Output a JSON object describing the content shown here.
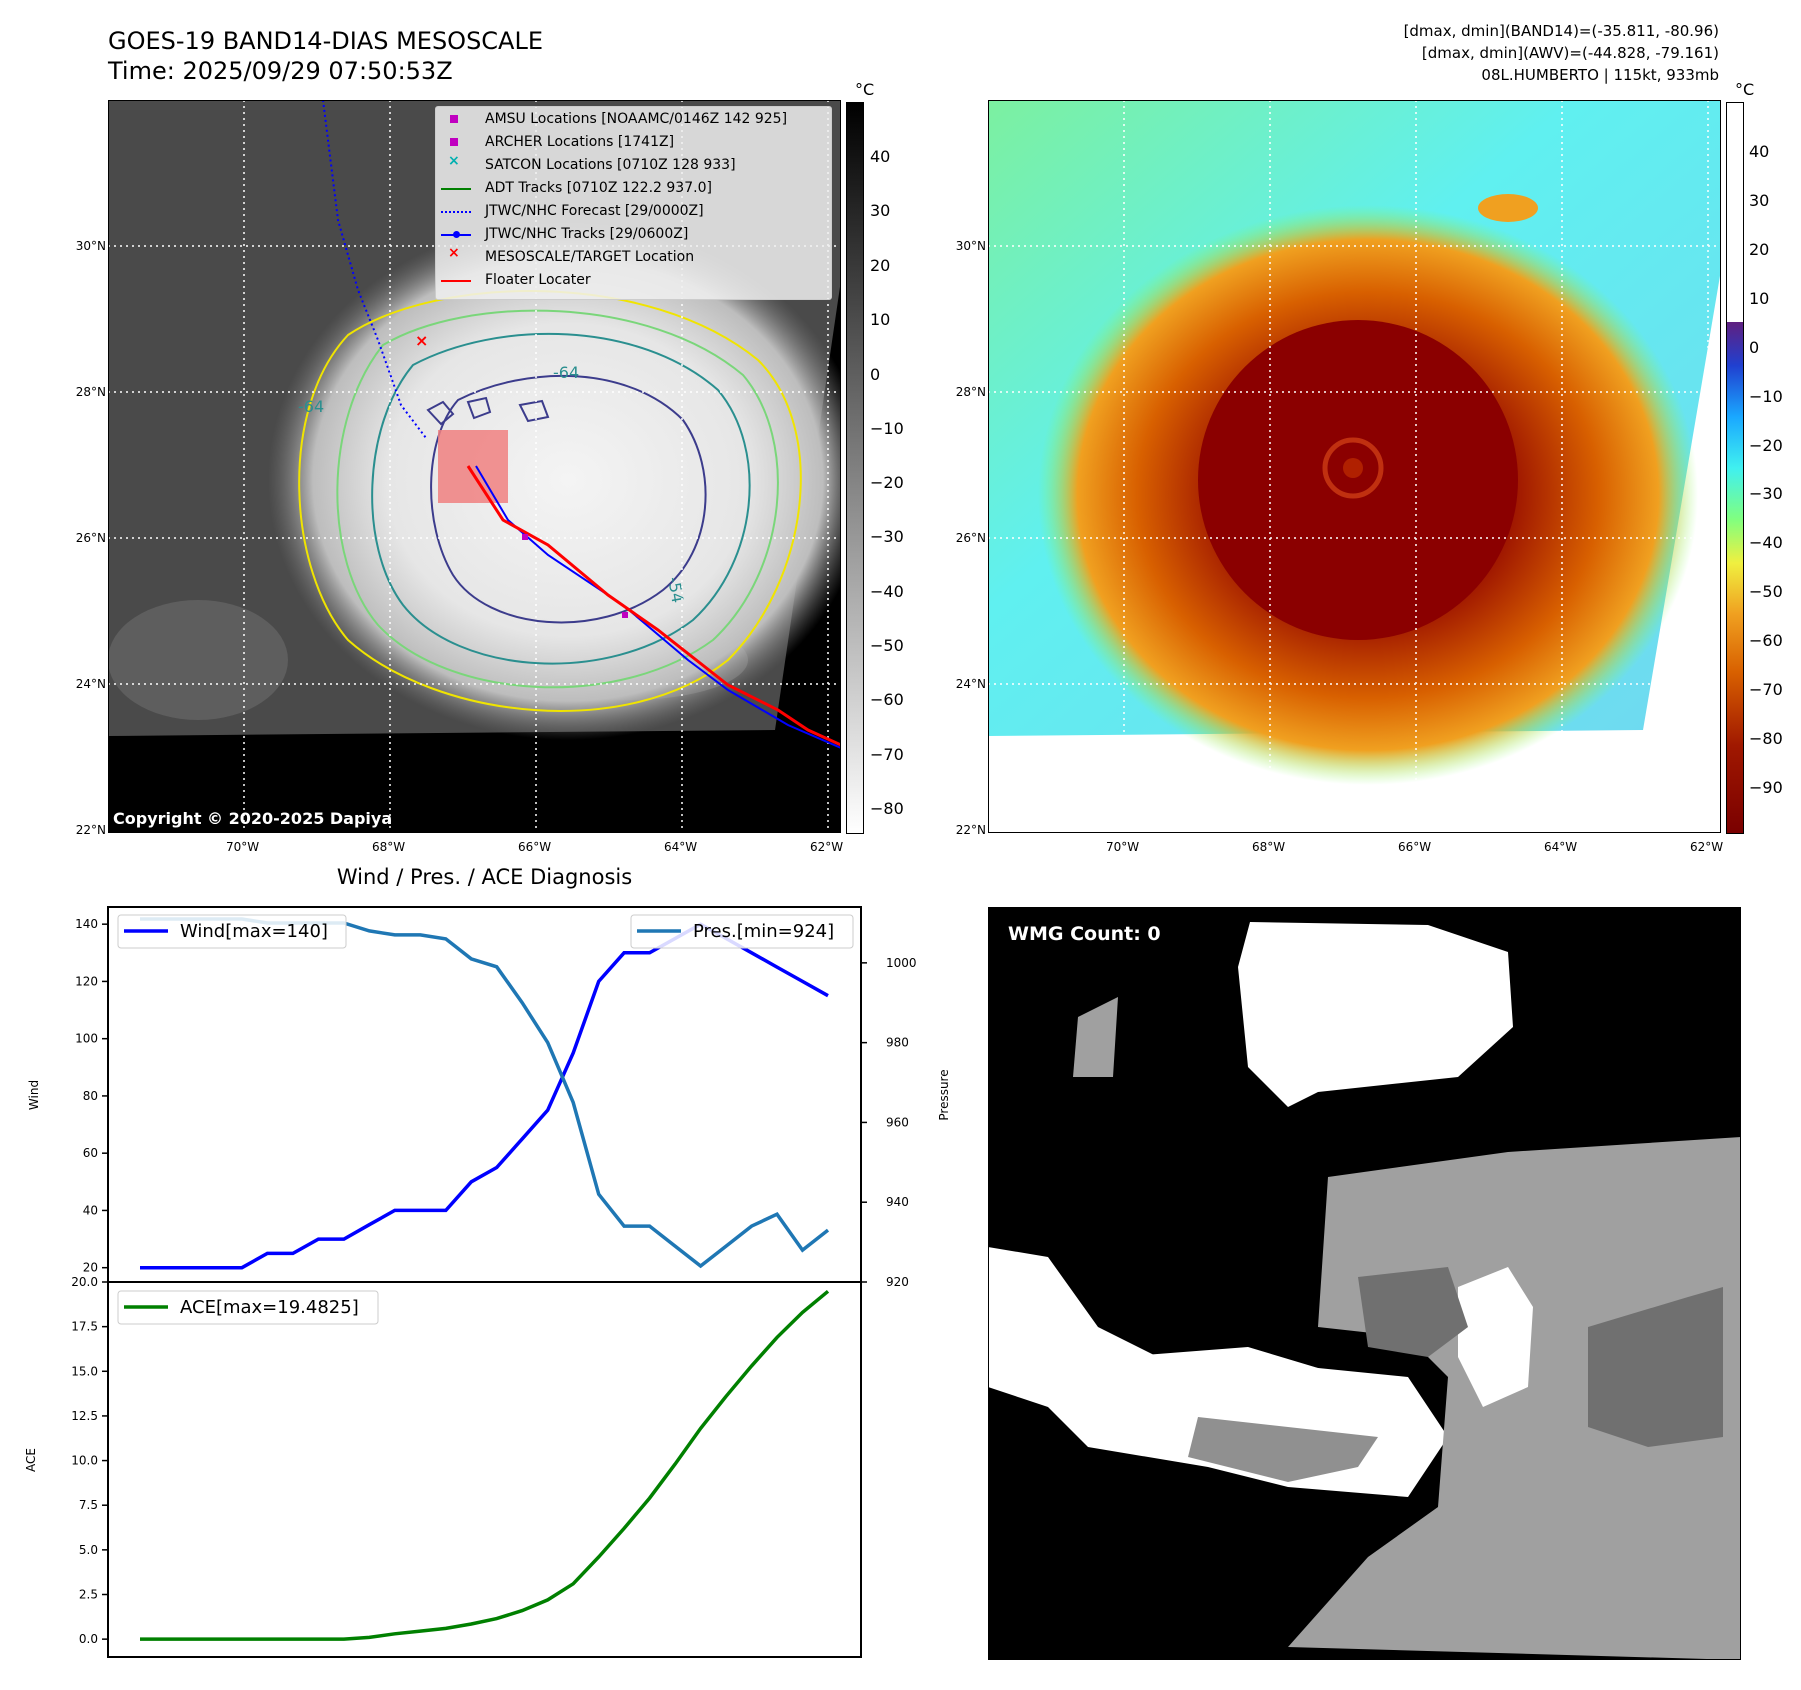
{
  "header": {
    "title_line1": "GOES-19 BAND14-DIAS MESOSCALE",
    "title_line2": "Time: 2025/09/29 07:50:53Z",
    "info_line1": "[dmax, dmin](BAND14)=(-35.811, -80.96)",
    "info_line2": "[dmax, dmin](AWV)=(-44.828, -79.161)",
    "info_line3": "08L.HUMBERTO | 115kt, 933mb"
  },
  "map": {
    "lat_ticks": [
      "30°N",
      "28°N",
      "26°N",
      "24°N",
      "22°N"
    ],
    "lon_ticks": [
      "70°W",
      "68°W",
      "66°W",
      "64°W",
      "62°W"
    ],
    "copyright": "Copyright © 2020-2025 Dapiya",
    "contour_labels": [
      "-64",
      "-64",
      "-54"
    ],
    "legend": [
      {
        "label": "AMSU Locations [NOAAMC/0146Z 142 925]",
        "color": "#c000c0",
        "marker": "square"
      },
      {
        "label": "ARCHER Locations [1741Z]",
        "color": "#c000c0",
        "marker": "square"
      },
      {
        "label": "SATCON Locations [0710Z 128 933]",
        "color": "#00b0b0",
        "marker": "x"
      },
      {
        "label": "ADT Tracks [0710Z 122.2 937.0]",
        "color": "#008000",
        "marker": "line"
      },
      {
        "label": "JTWC/NHC Forecast [29/0000Z]",
        "color": "#0000ff",
        "marker": "dotted"
      },
      {
        "label": "JTWC/NHC Tracks [29/0600Z]",
        "color": "#0000ff",
        "marker": "line-dot"
      },
      {
        "label": "MESOSCALE/TARGET Location",
        "color": "#ff0000",
        "marker": "x"
      },
      {
        "label": "Floater Locater",
        "color": "#ff0000",
        "marker": "line"
      }
    ]
  },
  "colorbar_left": {
    "unit": "°C",
    "ticks": [
      "40",
      "30",
      "20",
      "10",
      "0",
      "−10",
      "−20",
      "−30",
      "−40",
      "−50",
      "−60",
      "−70",
      "−80"
    ]
  },
  "colorbar_right": {
    "unit": "°C",
    "ticks": [
      "40",
      "30",
      "20",
      "10",
      "0",
      "−10",
      "−20",
      "−30",
      "−40",
      "−50",
      "−60",
      "−70",
      "−80",
      "−90"
    ]
  },
  "wmg": {
    "label": "WMG Count: 0"
  },
  "chart_data": [
    {
      "type": "line",
      "title": "Wind / Pres. / ACE Diagnosis",
      "ylabel": "Wind",
      "y2label": "Pressure",
      "ylim": [
        15,
        146
      ],
      "y2lim": [
        920,
        1014
      ],
      "yticks": [
        20,
        40,
        60,
        80,
        100,
        120,
        140
      ],
      "y2ticks": [
        920,
        940,
        960,
        980,
        1000
      ],
      "series": [
        {
          "name": "Wind[max=140]",
          "color": "#0000ff",
          "axis": "left",
          "values": [
            20,
            20,
            20,
            20,
            20,
            25,
            25,
            30,
            30,
            35,
            40,
            40,
            40,
            50,
            55,
            65,
            75,
            95,
            120,
            130,
            130,
            135,
            140,
            135,
            130,
            125,
            120,
            115
          ]
        },
        {
          "name": "Pres.[min=924]",
          "color": "#1f77b4",
          "axis": "right",
          "values": [
            1011,
            1011,
            1011,
            1011,
            1011,
            1010,
            1010,
            1010,
            1010,
            1008,
            1007,
            1007,
            1006,
            1001,
            999,
            990,
            980,
            965,
            942,
            934,
            934,
            929,
            924,
            929,
            934,
            937,
            928,
            933
          ]
        }
      ]
    },
    {
      "type": "line",
      "ylabel": "ACE",
      "ylim": [
        -1,
        20
      ],
      "yticks": [
        "0.0",
        "2.5",
        "5.0",
        "7.5",
        "10.0",
        "12.5",
        "15.0",
        "17.5",
        "20.0"
      ],
      "series": [
        {
          "name": "ACE[max=19.4825]",
          "color": "#008000",
          "values": [
            0,
            0,
            0,
            0,
            0,
            0,
            0,
            0,
            0,
            0.1,
            0.3,
            0.45,
            0.6,
            0.85,
            1.15,
            1.6,
            2.2,
            3.1,
            4.6,
            6.2,
            7.9,
            9.8,
            11.8,
            13.6,
            15.3,
            16.9,
            18.3,
            19.48
          ]
        }
      ]
    }
  ]
}
